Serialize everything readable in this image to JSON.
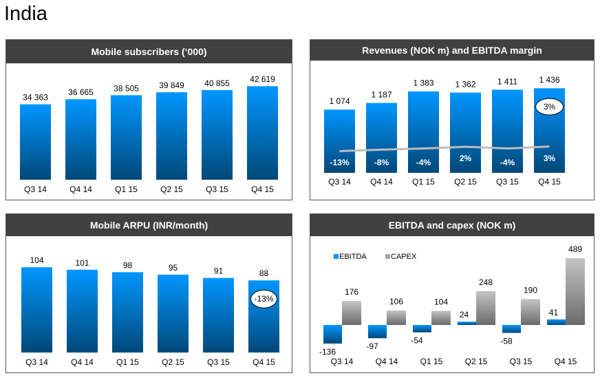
{
  "page": {
    "title": "India"
  },
  "colors": {
    "header_bg": "#404040",
    "bar_top": "#0096ff",
    "bar_bottom": "#004878",
    "capex_top": "#c4c4c4",
    "capex_bottom": "#6a6a6a",
    "margin_line": "#bdbdbd"
  },
  "chart_data": [
    {
      "id": "subscribers",
      "type": "bar",
      "title": "Mobile subscribers (‘000)",
      "categories": [
        "Q3 14",
        "Q4 14",
        "Q1 15",
        "Q2 15",
        "Q3 15",
        "Q4 15"
      ],
      "values": [
        34363,
        36665,
        38505,
        39849,
        40855,
        42619
      ],
      "labels": [
        "34 363",
        "36 665",
        "38 505",
        "39 849",
        "40 855",
        "42 619"
      ],
      "xlabel": "",
      "ylabel": "",
      "ylim": [
        0,
        43000
      ],
      "grid": false
    },
    {
      "id": "revenues",
      "type": "bar",
      "title": "Revenues (NOK m) and EBITDA margin",
      "categories": [
        "Q3 14",
        "Q4 14",
        "Q1 15",
        "Q2 15",
        "Q3 15",
        "Q4 15"
      ],
      "values": [
        1074,
        1187,
        1383,
        1362,
        1411,
        1436
      ],
      "labels": [
        "1 074",
        "1 187",
        "1 383",
        "1 362",
        "1 411",
        "1 436"
      ],
      "series": [
        {
          "name": "Revenues",
          "values": [
            1074,
            1187,
            1383,
            1362,
            1411,
            1436
          ]
        },
        {
          "name": "EBITDA margin",
          "type": "line",
          "values": [
            -13,
            -8,
            -4,
            2,
            -4,
            3
          ],
          "labels": [
            "-13%",
            "-8%",
            "-4%",
            "2%",
            "-4%",
            "3%"
          ]
        }
      ],
      "annotation": {
        "category": "Q4 15",
        "text": "3%"
      },
      "ylim": [
        0,
        1450
      ],
      "grid": false
    },
    {
      "id": "arpu",
      "type": "bar",
      "title": "Mobile ARPU (INR/month)",
      "categories": [
        "Q3 14",
        "Q4 14",
        "Q1 15",
        "Q2 15",
        "Q3 15",
        "Q4 15"
      ],
      "values": [
        104,
        101,
        98,
        95,
        91,
        88
      ],
      "labels": [
        "104",
        "101",
        "98",
        "95",
        "91",
        "88"
      ],
      "annotation": {
        "category": "Q4 15",
        "text": "-13%"
      },
      "ylim": [
        0,
        105
      ],
      "grid": false
    },
    {
      "id": "ebitda_capex",
      "type": "bar",
      "title": "EBITDA and capex (NOK m)",
      "categories": [
        "Q3 14",
        "Q4 14",
        "Q1 15",
        "Q2 15",
        "Q3 15",
        "Q4 15"
      ],
      "series": [
        {
          "name": "EBITDA",
          "values": [
            -136,
            -97,
            -54,
            24,
            -58,
            41
          ]
        },
        {
          "name": "CAPEX",
          "values": [
            176,
            106,
            104,
            248,
            190,
            489
          ]
        }
      ],
      "legend": [
        "EBITDA",
        "CAPEX"
      ],
      "legend_position": "top-left",
      "ylim": [
        -150,
        500
      ],
      "grid": false
    }
  ]
}
